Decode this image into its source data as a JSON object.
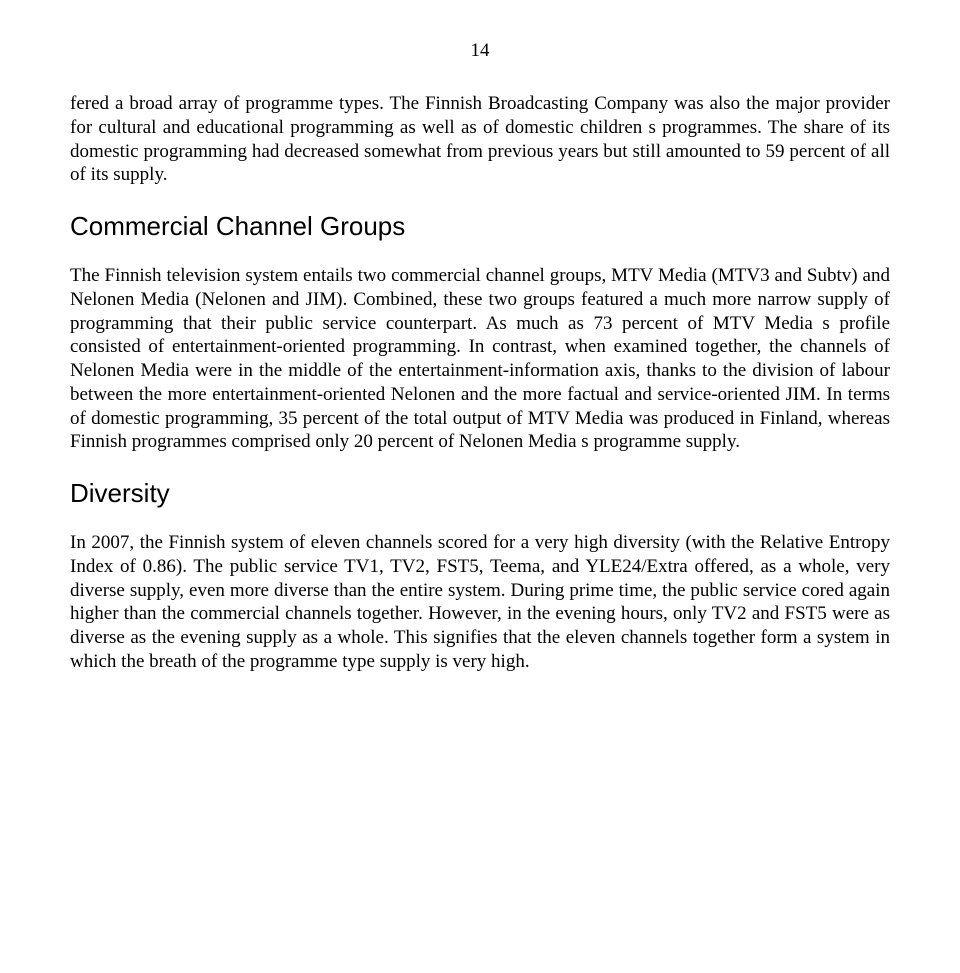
{
  "pageNumber": "14",
  "para1": "fered a broad array of programme types. The Finnish Broadcasting Company was also the major provider for cultural and educational programming as well as of domestic children s programmes. The share of its domestic programming had decreased somewhat from previous years but still amounted to 59 percent of all of its supply.",
  "heading1": "Commercial Channel Groups",
  "para2": "The Finnish television system entails two commercial channel groups, MTV Media (MTV3 and Subtv) and Nelonen Media (Nelonen and JIM). Combined, these two groups featured a much more narrow supply of programming that their public service counterpart. As much as 73 percent of MTV Media s profile consisted of entertainment-oriented programming. In contrast, when examined together, the channels of Nelonen Media were in the middle of the entertainment-information axis,  thanks to the division of labour between the more entertainment-oriented Nelonen and the more factual and service-oriented JIM. In terms of domestic programming, 35 percent of the total output of MTV Media was produced in Finland, whereas Finnish programmes comprised only 20 percent of Nelonen Media s programme supply.",
  "heading2": "Diversity",
  "para3": "In 2007, the Finnish system of eleven channels scored for a very high diversity (with the Relative Entropy Index of 0.86). The public service TV1, TV2, FST5, Teema, and YLE24/Extra offered, as a whole, very diverse supply, even more diverse than the entire system.  During prime time, the public service cored again higher than the commercial channels together. However, in the evening hours, only TV2 and FST5 were as diverse as the evening supply as a whole. This signifies that the eleven channels together form a system in which the breath of the programme type supply is very high."
}
